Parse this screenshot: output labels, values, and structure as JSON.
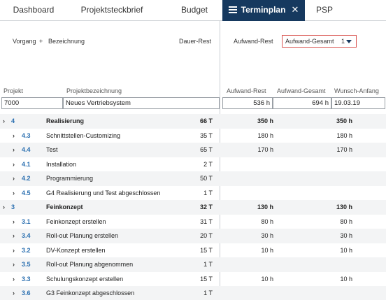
{
  "tabs": [
    {
      "label": "Dashboard"
    },
    {
      "label": "Projektsteckbrief"
    },
    {
      "label": "Budget"
    },
    {
      "label": "Terminplan"
    },
    {
      "label": "PSP"
    }
  ],
  "columns": {
    "vorgang": "Vorgang",
    "plus": "+",
    "bezeichnung": "Bezeichnung",
    "dauer_rest": "Dauer-Rest",
    "aufwand_rest": "Aufwand-Rest",
    "aufwand_gesamt_select": "Aufwand-Gesamt",
    "select_suffix": "1"
  },
  "project": {
    "labels": {
      "projekt": "Projekt",
      "projektbezeichnung": "Projektbezeichnung",
      "aufwand_rest": "Aufwand-Rest",
      "aufwand_gesamt": "Aufwand-Gesamt",
      "wunsch_anfang": "Wunsch-Anfang"
    },
    "values": {
      "projekt": "7000",
      "projektbezeichnung": "Neues Vertriebsystem",
      "aufwand_rest": "536 h",
      "aufwand_gesamt": "694 h",
      "wunsch_anfang": "19.03.19"
    }
  },
  "rows": [
    {
      "level": 0,
      "num": "4",
      "name": "Realisierung",
      "dur": "66 T",
      "ar": "350 h",
      "ag": "350 h"
    },
    {
      "level": 1,
      "num": "4.3",
      "name": "Schnittstellen-Customizing",
      "dur": "35 T",
      "ar": "180 h",
      "ag": "180 h"
    },
    {
      "level": 1,
      "num": "4.4",
      "name": "Test",
      "dur": "65 T",
      "ar": "170 h",
      "ag": "170 h"
    },
    {
      "level": 1,
      "num": "4.1",
      "name": "Installation",
      "dur": "2 T",
      "ar": "",
      "ag": ""
    },
    {
      "level": 1,
      "num": "4.2",
      "name": "Programmierung",
      "dur": "50 T",
      "ar": "",
      "ag": ""
    },
    {
      "level": 1,
      "num": "4.5",
      "name": "G4 Realisierung und Test abgeschlossen",
      "dur": "1 T",
      "ar": "",
      "ag": ""
    },
    {
      "level": 0,
      "num": "3",
      "name": "Feinkonzept",
      "dur": "32 T",
      "ar": "130 h",
      "ag": "130 h"
    },
    {
      "level": 1,
      "num": "3.1",
      "name": "Feinkonzept erstellen",
      "dur": "31 T",
      "ar": "80 h",
      "ag": "80 h"
    },
    {
      "level": 1,
      "num": "3.4",
      "name": "Roll-out Planung erstellen",
      "dur": "20 T",
      "ar": "30 h",
      "ag": "30 h"
    },
    {
      "level": 1,
      "num": "3.2",
      "name": "DV-Konzept erstellen",
      "dur": "15 T",
      "ar": "10 h",
      "ag": "10 h"
    },
    {
      "level": 1,
      "num": "3.5",
      "name": "Roll-out Planung abgenommen",
      "dur": "1 T",
      "ar": "",
      "ag": ""
    },
    {
      "level": 1,
      "num": "3.3",
      "name": "Schulungskonzept erstellen",
      "dur": "15 T",
      "ar": "10 h",
      "ag": "10 h"
    },
    {
      "level": 1,
      "num": "3.6",
      "name": "G3 Feinkonzept abgeschlossen",
      "dur": "1 T",
      "ar": "",
      "ag": ""
    }
  ],
  "colors": {
    "active_tab_bg": "#16395f",
    "number_blue": "#2a6fb0",
    "highlight_border": "#d9534f"
  },
  "icons": {
    "menu": "hamburger-icon",
    "close": "close-icon",
    "expand": "chevron-right-icon",
    "dropdown": "caret-down-icon"
  }
}
